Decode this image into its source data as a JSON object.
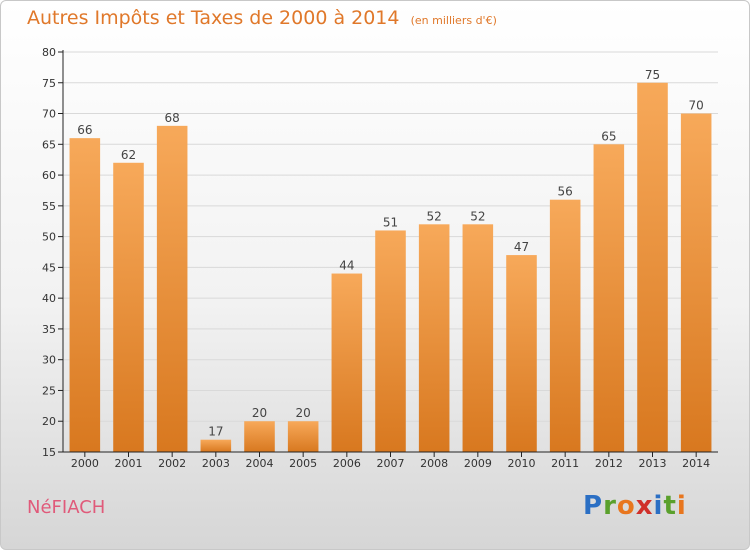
{
  "header": {
    "title": "Autres Impôts et Taxes de 2000 à 2014",
    "unit": "(en milliers d'€)"
  },
  "footer": {
    "commune": "NéFIACH",
    "logo_letters": [
      "P",
      "r",
      "o",
      "x",
      "i",
      "t",
      "i"
    ],
    "logo_colors": [
      "#2b6fc4",
      "#5aa02c",
      "#e8761e",
      "#d0302a",
      "#2b6fc4",
      "#5aa02c",
      "#e8761e"
    ]
  },
  "colors": {
    "bar_light": "#f7a95a",
    "bar_dark": "#d8781f",
    "grid": "#d9d9d9",
    "axis": "#222222",
    "accent": "#e0782a"
  },
  "chart_data": {
    "type": "bar",
    "categories": [
      "2000",
      "2001",
      "2002",
      "2003",
      "2004",
      "2005",
      "2006",
      "2007",
      "2008",
      "2009",
      "2010",
      "2011",
      "2012",
      "2013",
      "2014"
    ],
    "values": [
      66,
      62,
      68,
      17,
      20,
      20,
      44,
      51,
      52,
      52,
      47,
      56,
      65,
      75,
      70
    ],
    "ylim": [
      15,
      80
    ],
    "yticks": [
      15,
      20,
      25,
      30,
      35,
      40,
      45,
      50,
      55,
      60,
      65,
      70,
      75,
      80
    ],
    "grid": true
  }
}
